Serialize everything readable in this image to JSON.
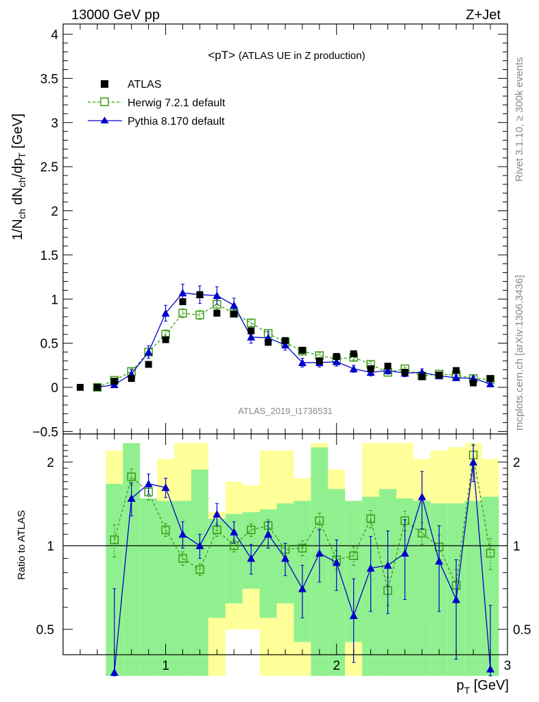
{
  "header": {
    "left": "13000 GeV pp",
    "right": "Z+Jet"
  },
  "side_text": {
    "top": "Rivet 3.1.10, ≥ 300k events",
    "bottom": "mcplots.cern.ch [arXiv:1306.3436]"
  },
  "colors": {
    "atlas": "#000000",
    "herwig": "#3c9a14",
    "pythia": "#0000cc",
    "band_green": "#90f090",
    "band_yellow": "#ffff99"
  },
  "chart_data": [
    {
      "type": "line",
      "title": "<pT>",
      "subtitle": "(ATLAS UE in Z production)",
      "watermark": "ATLAS_2019_I1736531",
      "ylabel": "1/N_ch dN_ch/dp_T [GeV]",
      "ylim": [
        -0.5,
        4.1
      ],
      "yticks": [
        "−0.5",
        "0",
        "0.5",
        "1",
        "1.5",
        "2",
        "2.5",
        "3",
        "3.5",
        "4"
      ],
      "x": [
        0.5,
        0.6,
        0.7,
        0.8,
        0.9,
        1.0,
        1.1,
        1.2,
        1.3,
        1.4,
        1.5,
        1.6,
        1.7,
        1.8,
        1.9,
        2.0,
        2.1,
        2.2,
        2.3,
        2.4,
        2.5,
        2.6,
        2.7,
        2.8,
        2.9
      ],
      "xlim": [
        0.4,
        3.0
      ],
      "legend_position": "top-left",
      "series": [
        {
          "name": "ATLAS",
          "style": "data",
          "x": [
            0.5,
            0.6,
            0.7,
            0.8,
            0.9,
            1.0,
            1.1,
            1.2,
            1.3,
            1.4,
            1.5,
            1.6,
            1.7,
            1.8,
            1.9,
            2.0,
            2.1,
            2.2,
            2.3,
            2.4,
            2.5,
            2.6,
            2.7,
            2.8,
            2.9
          ],
          "values": [
            0.0,
            0.0,
            0.07,
            0.1,
            0.26,
            0.54,
            0.97,
            1.05,
            0.84,
            0.83,
            0.64,
            0.51,
            0.53,
            0.42,
            0.3,
            0.35,
            0.38,
            0.21,
            0.24,
            0.17,
            0.12,
            0.14,
            0.19,
            0.05,
            0.1
          ]
        },
        {
          "name": "Herwig 7.2.1 default",
          "style": "herwig",
          "x": [
            0.6,
            0.7,
            0.8,
            0.9,
            1.0,
            1.1,
            1.2,
            1.3,
            1.4,
            1.5,
            1.6,
            1.7,
            1.8,
            1.9,
            2.0,
            2.1,
            2.2,
            2.3,
            2.4,
            2.5,
            2.6,
            2.7,
            2.8,
            2.9
          ],
          "values": [
            0.0,
            0.08,
            0.18,
            0.4,
            0.6,
            0.84,
            0.82,
            0.94,
            0.84,
            0.73,
            0.61,
            0.51,
            0.41,
            0.36,
            0.32,
            0.34,
            0.26,
            0.17,
            0.21,
            0.13,
            0.15,
            0.14,
            0.1,
            0.09
          ],
          "err": [
            0.02,
            0.02,
            0.03,
            0.04,
            0.05,
            0.05,
            0.05,
            0.06,
            0.04,
            0.04,
            0.04,
            0.04,
            0.03,
            0.03,
            0.03,
            0.03,
            0.03,
            0.02,
            0.02,
            0.02,
            0.02,
            0.02,
            0.02,
            0.02
          ]
        },
        {
          "name": "Pythia 8.170 default",
          "style": "pythia",
          "x": [
            0.6,
            0.7,
            0.8,
            0.9,
            1.0,
            1.1,
            1.2,
            1.3,
            1.4,
            1.5,
            1.6,
            1.7,
            1.8,
            1.9,
            2.0,
            2.1,
            2.2,
            2.3,
            2.4,
            2.5,
            2.6,
            2.7,
            2.8,
            2.9
          ],
          "values": [
            0.0,
            0.03,
            0.15,
            0.4,
            0.84,
            1.07,
            1.05,
            1.04,
            0.93,
            0.57,
            0.56,
            0.48,
            0.28,
            0.28,
            0.29,
            0.21,
            0.17,
            0.19,
            0.16,
            0.17,
            0.13,
            0.11,
            0.1,
            0.04
          ],
          "err": [
            0.02,
            0.03,
            0.05,
            0.07,
            0.09,
            0.1,
            0.1,
            0.1,
            0.08,
            0.07,
            0.07,
            0.06,
            0.05,
            0.05,
            0.05,
            0.04,
            0.04,
            0.04,
            0.04,
            0.04,
            0.03,
            0.03,
            0.03,
            0.02
          ]
        }
      ]
    },
    {
      "type": "line",
      "ylabel": "Ratio to ATLAS",
      "xlabel": "p_T [GeV]",
      "ylim": [
        0.34,
        2.34
      ],
      "xlim": [
        0.4,
        3.0
      ],
      "xticks": [
        "1",
        "2",
        "3"
      ],
      "yticks": [
        "0.5",
        "1",
        "2"
      ],
      "reference_line": 1,
      "bands": {
        "x_lo": [
          0.65,
          0.75,
          0.85,
          0.95,
          1.05,
          1.15,
          1.25,
          1.35,
          1.45,
          1.55,
          1.65,
          1.75,
          1.85,
          1.95,
          2.05,
          2.15,
          2.25,
          2.35,
          2.45,
          2.55,
          2.65,
          2.75,
          2.85
        ],
        "x_hi": [
          0.75,
          0.85,
          0.95,
          1.05,
          1.15,
          1.25,
          1.35,
          1.45,
          1.55,
          1.65,
          1.75,
          1.85,
          1.95,
          2.05,
          2.15,
          2.25,
          2.35,
          2.45,
          2.55,
          2.65,
          2.75,
          2.85,
          2.95
        ],
        "green_lo": [
          0.34,
          0.34,
          0.34,
          0.34,
          0.34,
          0.34,
          0.55,
          0.62,
          0.7,
          0.55,
          0.62,
          0.45,
          0.34,
          0.34,
          0.45,
          0.34,
          0.34,
          0.34,
          0.34,
          0.34,
          0.34,
          0.34,
          0.34
        ],
        "green_hi": [
          1.67,
          2.34,
          1.48,
          1.45,
          1.45,
          1.88,
          1.25,
          1.3,
          1.32,
          1.35,
          1.42,
          1.45,
          2.26,
          1.6,
          1.45,
          1.5,
          1.6,
          1.48,
          1.45,
          1.42,
          1.42,
          1.45,
          1.5
        ],
        "yellow_lo": [
          0.34,
          0.34,
          0.72,
          0.7,
          0.55,
          0.34,
          0.34,
          0.5,
          0.5,
          0.34,
          0.34,
          0.34,
          0.34,
          0.34,
          0.34,
          0.34,
          0.54,
          0.34,
          0.52,
          0.34,
          0.34,
          0.34,
          0.54
        ],
        "yellow_hi": [
          2.2,
          2.34,
          1.48,
          2.05,
          2.34,
          2.34,
          1.32,
          1.7,
          1.65,
          2.2,
          2.2,
          1.75,
          2.34,
          1.88,
          1.33,
          2.34,
          2.34,
          2.34,
          2.05,
          2.2,
          2.26,
          2.34,
          2.05
        ]
      },
      "series": [
        {
          "name": "Herwig 7.2.1 default",
          "style": "herwig",
          "x": [
            0.7,
            0.8,
            0.9,
            1.0,
            1.1,
            1.2,
            1.3,
            1.4,
            1.5,
            1.6,
            1.7,
            1.8,
            1.9,
            2.0,
            2.1,
            2.2,
            2.3,
            2.4,
            2.5,
            2.6,
            2.7,
            2.8,
            2.9
          ],
          "values": [
            1.05,
            1.77,
            1.56,
            1.14,
            0.9,
            0.82,
            1.14,
            1.0,
            1.14,
            1.18,
            0.97,
            0.98,
            1.23,
            0.89,
            0.92,
            1.25,
            0.69,
            1.23,
            1.11,
            0.99,
            0.72,
            2.12,
            0.94
          ],
          "err_lo": [
            0.14,
            0.12,
            0.1,
            0.06,
            0.05,
            0.04,
            0.06,
            0.05,
            0.06,
            0.06,
            0.05,
            0.06,
            0.08,
            0.07,
            0.07,
            0.09,
            0.08,
            0.1,
            0.1,
            0.1,
            0.1,
            0.2,
            0.12
          ],
          "err_hi": [
            0.14,
            0.12,
            0.1,
            0.06,
            0.05,
            0.04,
            0.06,
            0.05,
            0.06,
            0.06,
            0.05,
            0.06,
            0.08,
            0.07,
            0.07,
            0.09,
            0.08,
            0.1,
            0.1,
            0.1,
            0.1,
            0.2,
            0.12
          ]
        },
        {
          "name": "Pythia 8.170 default",
          "style": "pythia",
          "x": [
            0.7,
            0.8,
            0.9,
            1.0,
            1.1,
            1.2,
            1.3,
            1.4,
            1.5,
            1.6,
            1.7,
            1.8,
            1.9,
            2.0,
            2.1,
            2.2,
            2.3,
            2.4,
            2.5,
            2.6,
            2.7,
            2.8,
            2.9
          ],
          "values": [
            0.35,
            1.48,
            1.67,
            1.62,
            1.1,
            1.0,
            1.3,
            1.12,
            0.9,
            1.1,
            0.9,
            0.7,
            0.94,
            0.87,
            0.56,
            0.83,
            0.85,
            0.94,
            1.5,
            0.88,
            0.64,
            2.0,
            0.36
          ],
          "err_lo": [
            0.25,
            0.2,
            0.14,
            0.13,
            0.12,
            0.1,
            0.12,
            0.1,
            0.11,
            0.12,
            0.12,
            0.15,
            0.2,
            0.18,
            0.18,
            0.25,
            0.28,
            0.3,
            0.35,
            0.3,
            0.25,
            0.3,
            0.25
          ],
          "err_hi": [
            0.35,
            0.2,
            0.14,
            0.13,
            0.12,
            0.1,
            0.12,
            0.1,
            0.11,
            0.12,
            0.12,
            0.15,
            0.2,
            0.18,
            0.2,
            0.25,
            0.28,
            0.3,
            0.35,
            0.3,
            0.25,
            0.3,
            0.25
          ]
        }
      ]
    }
  ]
}
